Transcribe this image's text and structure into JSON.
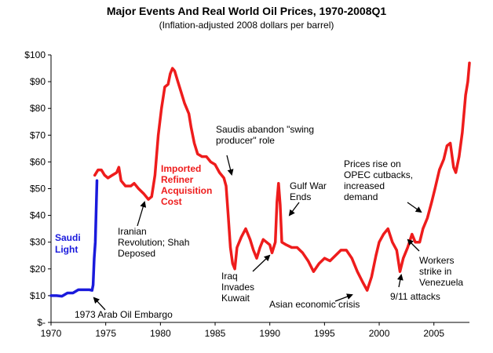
{
  "chart_data": {
    "type": "line",
    "title": "Major Events And Real World Oil Prices, 1970-2008Q1",
    "subtitle": "(Inflation-adjusted 2008 dollars per barrel)",
    "xlabel": "",
    "ylabel": "",
    "xlim": [
      1970,
      2008.25
    ],
    "ylim": [
      0,
      100
    ],
    "x_ticks": [
      1970,
      1975,
      1980,
      1985,
      1990,
      1995,
      2000,
      2005
    ],
    "x_tick_labels": [
      "1970",
      "1975",
      "1980",
      "1985",
      "1990",
      "1995",
      "2000",
      "2005"
    ],
    "y_ticks": [
      0,
      10,
      20,
      30,
      40,
      50,
      60,
      70,
      80,
      90,
      100
    ],
    "y_tick_labels": [
      "$-",
      "$10",
      "$20",
      "$30",
      "$40",
      "$50",
      "$60",
      "$70",
      "$80",
      "$90",
      "$100"
    ],
    "grid": false,
    "series": [
      {
        "name": "Saudi Light",
        "color": "#1a1adc",
        "points": [
          [
            1970,
            10
          ],
          [
            1970.5,
            10
          ],
          [
            1971,
            9.8
          ],
          [
            1971.5,
            11
          ],
          [
            1972,
            11
          ],
          [
            1972.5,
            12.2
          ],
          [
            1973,
            12.2
          ],
          [
            1973.5,
            12.2
          ],
          [
            1973.75,
            12
          ],
          [
            1973.85,
            14
          ],
          [
            1973.95,
            24
          ],
          [
            1974.05,
            30
          ],
          [
            1974.2,
            53
          ]
        ]
      },
      {
        "name": "Imported Refiner Acquisition Cost",
        "color": "#ee1c1c",
        "points": [
          [
            1974,
            55
          ],
          [
            1974.3,
            57
          ],
          [
            1974.6,
            57
          ],
          [
            1974.9,
            55
          ],
          [
            1975.2,
            54
          ],
          [
            1975.6,
            55
          ],
          [
            1976,
            56
          ],
          [
            1976.2,
            58
          ],
          [
            1976.4,
            53
          ],
          [
            1976.8,
            51
          ],
          [
            1977.3,
            51
          ],
          [
            1977.6,
            52
          ],
          [
            1978,
            50
          ],
          [
            1978.5,
            48
          ],
          [
            1978.9,
            46
          ],
          [
            1979.2,
            47
          ],
          [
            1979.5,
            55
          ],
          [
            1979.8,
            70
          ],
          [
            1980.1,
            80
          ],
          [
            1980.4,
            88
          ],
          [
            1980.7,
            89
          ],
          [
            1980.9,
            93
          ],
          [
            1981.1,
            95
          ],
          [
            1981.3,
            94
          ],
          [
            1981.6,
            90
          ],
          [
            1981.9,
            86
          ],
          [
            1982.2,
            82
          ],
          [
            1982.6,
            78
          ],
          [
            1982.8,
            73
          ],
          [
            1983.1,
            67
          ],
          [
            1983.4,
            63
          ],
          [
            1983.8,
            62
          ],
          [
            1984.2,
            62
          ],
          [
            1984.6,
            60
          ],
          [
            1985,
            59
          ],
          [
            1985.4,
            56
          ],
          [
            1985.8,
            54
          ],
          [
            1986,
            51
          ],
          [
            1986.2,
            40
          ],
          [
            1986.4,
            28
          ],
          [
            1986.6,
            22
          ],
          [
            1986.8,
            20
          ],
          [
            1987,
            28
          ],
          [
            1987.4,
            32
          ],
          [
            1987.8,
            35
          ],
          [
            1988.2,
            31
          ],
          [
            1988.5,
            27
          ],
          [
            1988.8,
            24
          ],
          [
            1989.1,
            28
          ],
          [
            1989.4,
            31
          ],
          [
            1989.7,
            30
          ],
          [
            1990,
            29
          ],
          [
            1990.2,
            26
          ],
          [
            1990.5,
            30
          ],
          [
            1990.65,
            45
          ],
          [
            1990.8,
            52
          ],
          [
            1990.95,
            44
          ],
          [
            1991.1,
            30
          ],
          [
            1991.5,
            29
          ],
          [
            1992,
            28
          ],
          [
            1992.5,
            28
          ],
          [
            1993,
            26
          ],
          [
            1993.5,
            23
          ],
          [
            1994,
            19
          ],
          [
            1994.5,
            22
          ],
          [
            1995,
            24
          ],
          [
            1995.5,
            23
          ],
          [
            1996,
            25
          ],
          [
            1996.5,
            27
          ],
          [
            1997,
            27
          ],
          [
            1997.5,
            24
          ],
          [
            1998,
            19
          ],
          [
            1998.5,
            15
          ],
          [
            1998.9,
            12
          ],
          [
            1999.3,
            17
          ],
          [
            1999.7,
            25
          ],
          [
            2000,
            30
          ],
          [
            2000.4,
            33
          ],
          [
            2000.8,
            35
          ],
          [
            2001.2,
            30
          ],
          [
            2001.6,
            27
          ],
          [
            2001.9,
            19
          ],
          [
            2002.2,
            24
          ],
          [
            2002.6,
            28
          ],
          [
            2003,
            33
          ],
          [
            2003.3,
            30
          ],
          [
            2003.7,
            30
          ],
          [
            2004,
            35
          ],
          [
            2004.4,
            39
          ],
          [
            2004.8,
            45
          ],
          [
            2005.1,
            50
          ],
          [
            2005.5,
            57
          ],
          [
            2005.9,
            61
          ],
          [
            2006.2,
            66
          ],
          [
            2006.5,
            67
          ],
          [
            2006.8,
            58
          ],
          [
            2007,
            56
          ],
          [
            2007.3,
            62
          ],
          [
            2007.6,
            71
          ],
          [
            2007.9,
            85
          ],
          [
            2008.1,
            90
          ],
          [
            2008.25,
            97
          ]
        ]
      }
    ],
    "annotations": {
      "saudi_light": "Saudi\nLight",
      "irac": "Imported\nRefiner\nAcquisition\nCost",
      "embargo": "1973 Arab Oil Embargo",
      "iranian": "Iranian\nRevolution; Shah\nDeposed",
      "saudis_abandon": "Saudis abandon \"swing\nproducer\" role",
      "iraq": "Iraq\nInvades\nKuwait",
      "gulf_war": "Gulf War\nEnds",
      "asian": "Asian economic crisis",
      "opec": "Prices rise on\nOPEC cutbacks,\nincreased\ndemand",
      "sept11": "9/11 attacks",
      "workers": "Workers\nstrike in\nVenezuela"
    }
  }
}
